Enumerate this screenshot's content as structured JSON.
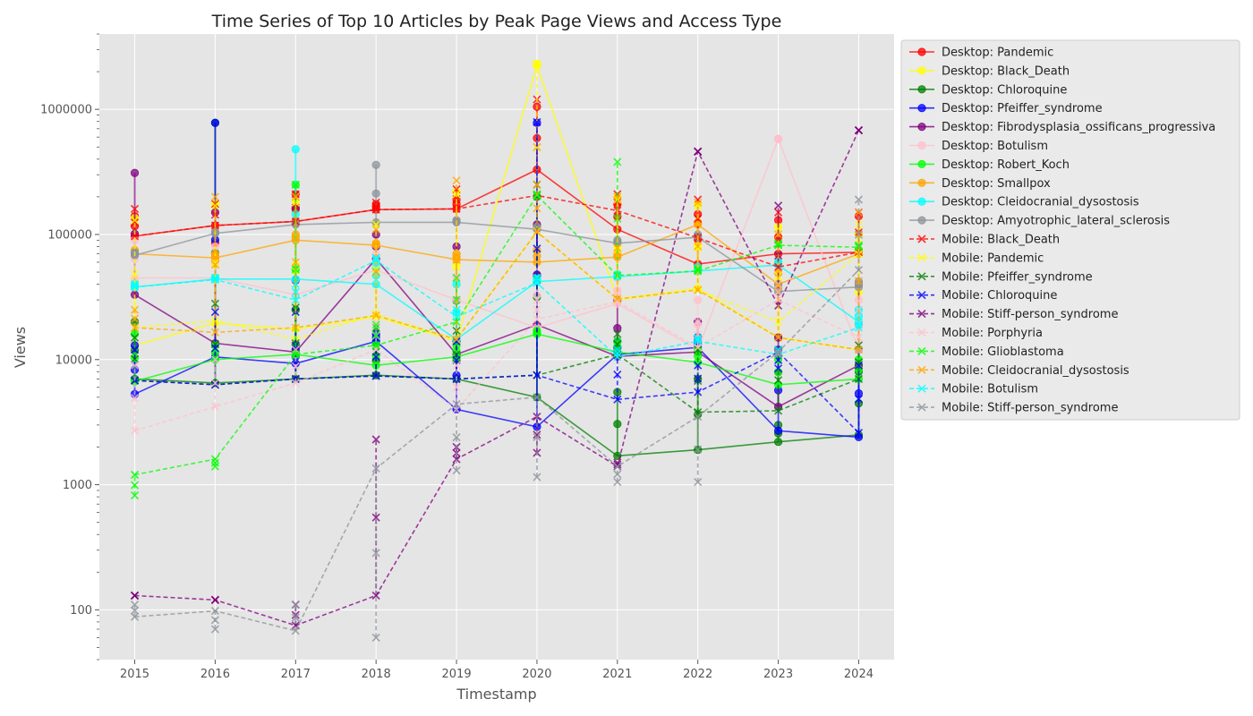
{
  "chart_data": {
    "type": "line",
    "title": "Time Series of Top 10 Articles by Peak Page Views and Access Type",
    "xlabel": "Timestamp",
    "ylabel": "Views",
    "yscale": "log",
    "ylim": [
      40,
      4000000
    ],
    "xlim": [
      2014.56,
      2024.44
    ],
    "grid": true,
    "legend_position": "outside-right",
    "x": [
      2015,
      2016,
      2017,
      2018,
      2019,
      2020,
      2021,
      2022,
      2023,
      2024
    ],
    "x_tick_labels": [
      "2015",
      "2016",
      "2017",
      "2018",
      "2019",
      "2020",
      "2021",
      "2022",
      "2023",
      "2024"
    ],
    "y_ticks": [
      100,
      1000,
      10000,
      100000,
      1000000
    ],
    "y_tick_labels": [
      "100",
      "1000",
      "10000",
      "100000",
      "1000000"
    ],
    "series": [
      {
        "name": "Desktop: Pandemic",
        "access": "desktop",
        "color": "#ff0000",
        "values": [
          97000,
          118000,
          127000,
          158000,
          160000,
          330000,
          110000,
          58000,
          70000,
          72000
        ],
        "spread": [
          140000,
          62000,
          210000,
          175000,
          190000,
          1050000,
          175000,
          145000,
          130000,
          140000
        ]
      },
      {
        "name": "Desktop: Black_Death",
        "access": "desktop",
        "color": "#ffff00",
        "values": [
          13000,
          19500,
          17500,
          22000,
          14000,
          2250000,
          30500,
          37000,
          15000,
          12000
        ],
        "spread": [
          135000,
          175000,
          185000,
          125000,
          220000,
          2300000,
          200000,
          175000,
          115000,
          100000
        ]
      },
      {
        "name": "Desktop: Chloroquine",
        "access": "desktop",
        "color": "#008000",
        "values": [
          7000,
          6500,
          7000,
          7500,
          7000,
          5000,
          1700,
          1900,
          2200,
          2500
        ],
        "spread": [
          20000,
          780000,
          25000,
          13000,
          14000,
          200000,
          5500,
          7000,
          3000,
          8000
        ]
      },
      {
        "name": "Desktop: Pfeiffer_syndrome",
        "access": "desktop",
        "color": "#0000ff",
        "values": [
          5300,
          10500,
          9300,
          14000,
          4000,
          2900,
          11000,
          12500,
          2700,
          2400
        ],
        "spread": [
          13000,
          780000,
          12000,
          16000,
          14000,
          780000,
          14000,
          14000,
          12000,
          12000
        ]
      },
      {
        "name": "Desktop: Fibrodysplasia_ossificans_progressiva",
        "access": "desktop",
        "color": "#800080",
        "values": [
          33000,
          13500,
          11500,
          64000,
          11000,
          19000,
          10600,
          11500,
          4200,
          9000
        ],
        "spread": [
          310000,
          150000,
          160000,
          100000,
          80000,
          120000,
          30000,
          20000,
          15000,
          40000
        ]
      },
      {
        "name": "Desktop: Botulism",
        "access": "desktop",
        "color": "#ffc0cb",
        "values": [
          45000,
          45000,
          33000,
          52000,
          30000,
          18000,
          28000,
          12000,
          580000,
          12000
        ],
        "spread": [
          90000,
          80000,
          90000,
          70000,
          70000,
          60000,
          45000,
          30000,
          580000,
          30000
        ]
      },
      {
        "name": "Desktop: Robert_Koch",
        "access": "desktop",
        "color": "#00ff00",
        "values": [
          6700,
          10000,
          11000,
          9000,
          10500,
          16000,
          11500,
          9500,
          6300,
          7000
        ],
        "spread": [
          16000,
          13000,
          250000,
          13000,
          13000,
          17000,
          14000,
          12000,
          10000,
          10000
        ]
      },
      {
        "name": "Desktop: Smallpox",
        "access": "desktop",
        "color": "#ffa500",
        "values": [
          70000,
          65000,
          90000,
          82000,
          63000,
          60000,
          66000,
          120000,
          40000,
          70000
        ],
        "spread": [
          75000,
          70000,
          100000,
          85000,
          70000,
          75000,
          70000,
          125000,
          60000,
          75000
        ]
      },
      {
        "name": "Desktop: Cleidocranial_dysostosis",
        "access": "desktop",
        "color": "#00ffff",
        "values": [
          38000,
          44000,
          44000,
          40000,
          14500,
          42000,
          46000,
          51000,
          57000,
          20000
        ],
        "spread": [
          40000,
          45000,
          480000,
          55000,
          40000,
          45000,
          48000,
          55000,
          60000,
          25000
        ]
      },
      {
        "name": "Desktop: Amyotrophic_lateral_sclerosis",
        "access": "desktop",
        "color": "#8c939b",
        "values": [
          68000,
          102000,
          120000,
          125000,
          125000,
          110000,
          85000,
          95000,
          35000,
          38000
        ],
        "spread": [
          72000,
          105000,
          125000,
          360000,
          130000,
          115000,
          90000,
          100000,
          40000,
          42000
        ]
      },
      {
        "name": "Mobile: Black_Death",
        "access": "mobile",
        "color": "#ff0000",
        "values": [
          97000,
          118000,
          127000,
          158000,
          160000,
          205000,
          155000,
          94000,
          55000,
          72000
        ],
        "spread": [
          160000,
          175000,
          210000,
          180000,
          230000,
          1200000,
          210000,
          190000,
          150000,
          150000
        ]
      },
      {
        "name": "Mobile: Pandemic",
        "access": "mobile",
        "color": "#ffff00",
        "values": [
          18000,
          20500,
          14500,
          23000,
          14500,
          106000,
          30000,
          36000,
          20000,
          70000
        ],
        "spread": [
          130000,
          170000,
          180000,
          120000,
          210000,
          2300000,
          190000,
          170000,
          110000,
          120000
        ]
      },
      {
        "name": "Mobile: Pfeiffer_syndrome",
        "access": "mobile",
        "color": "#008000",
        "values": [
          6800,
          6300,
          7000,
          7400,
          7000,
          7500,
          11000,
          3800,
          3900,
          7000
        ],
        "spread": [
          15000,
          28000,
          26000,
          18000,
          17000,
          250000,
          16000,
          12000,
          12000,
          13000
        ]
      },
      {
        "name": "Mobile: Chloroquine",
        "access": "mobile",
        "color": "#0000ff",
        "values": [
          6800,
          6300,
          7000,
          7400,
          7000,
          7500,
          4800,
          5500,
          11500,
          2600
        ],
        "spread": [
          12000,
          24000,
          24000,
          15000,
          14000,
          790000,
          12000,
          9000,
          8500,
          9000
        ]
      },
      {
        "name": "Mobile: Stiff-person_syndrome",
        "access": "mobile",
        "color": "#800080",
        "values": [
          130,
          120,
          75,
          130,
          1600,
          3500,
          1400,
          460000,
          27000,
          680000
        ],
        "spread": [
          130,
          120,
          110,
          2300,
          2000,
          1800,
          1500,
          460000,
          170000,
          680000
        ]
      },
      {
        "name": "Mobile: Porphyria",
        "access": "mobile",
        "color": "#ffc0cb",
        "values": [
          2700,
          4200,
          6500,
          12000,
          4000,
          21000,
          29000,
          12500,
          30000,
          15000
        ],
        "spread": [
          9000,
          10000,
          12000,
          20000,
          9000,
          30000,
          35000,
          20000,
          40000,
          25000
        ]
      },
      {
        "name": "Mobile: Glioblastoma",
        "access": "mobile",
        "color": "#00ff00",
        "values": [
          1200,
          1600,
          11000,
          13000,
          20000,
          205000,
          47000,
          51000,
          82000,
          79000
        ],
        "spread": [
          820,
          1400,
          250000,
          19000,
          45000,
          210000,
          380000,
          53000,
          85000,
          82000
        ]
      },
      {
        "name": "Mobile: Cleidocranial_dysostosis",
        "access": "mobile",
        "color": "#ffa500",
        "values": [
          18000,
          16500,
          18000,
          22500,
          14500,
          105000,
          30500,
          36000,
          15000,
          12000
        ],
        "spread": [
          25000,
          200000,
          200000,
          110000,
          270000,
          250000,
          200000,
          180000,
          100000,
          150000
        ]
      },
      {
        "name": "Mobile: Botulism",
        "access": "mobile",
        "color": "#00ffff",
        "values": [
          38000,
          43500,
          30000,
          62000,
          22000,
          41000,
          10500,
          14000,
          11000,
          18000
        ],
        "spread": [
          40000,
          45000,
          40000,
          65000,
          25000,
          45000,
          12000,
          15000,
          12000,
          20000
        ]
      },
      {
        "name": "Mobile: Stiff-person_syndrome",
        "access": "mobile",
        "color": "#8c939b",
        "values": [
          88,
          98,
          68,
          1350,
          4400,
          5000,
          1400,
          3500,
          11500,
          52000
        ],
        "spread": [
          110,
          70,
          110,
          60,
          1300,
          1150,
          1050,
          1050,
          11000,
          190000
        ]
      }
    ]
  }
}
